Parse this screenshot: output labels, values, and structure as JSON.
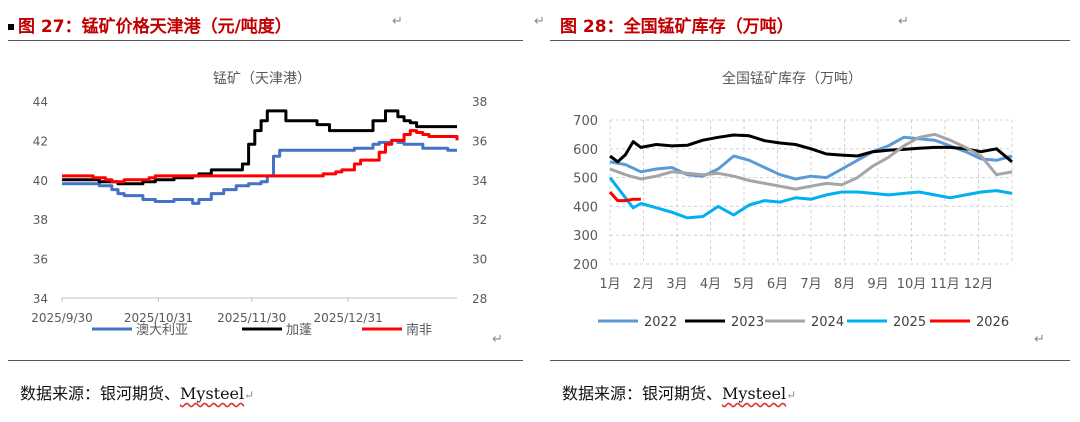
{
  "left": {
    "figure_title": "图 27：锰矿价格天津港（元/吨度）",
    "return_mark": "↵",
    "source": {
      "prefix": "数据来源：银河期货、",
      "brand": "Mysteel",
      "mark": "↵"
    },
    "chart_data": {
      "type": "line",
      "title": "锰矿（天津港）",
      "xlabel": "",
      "ylabel": "",
      "y_left": {
        "min": 34,
        "max": 44,
        "ticks": [
          "44",
          "42",
          "40",
          "38",
          "36",
          "34"
        ]
      },
      "y_right": {
        "min": 28,
        "max": 38,
        "ticks": [
          "38",
          "36",
          "34",
          "32",
          "30",
          "28"
        ]
      },
      "x_ticks": [
        {
          "label": "2025/9/30",
          "day": 0
        },
        {
          "label": "2025/10/31",
          "day": 31
        },
        {
          "label": "2025/11/30",
          "day": 61
        },
        {
          "label": "2025/12/31",
          "day": 92
        }
      ],
      "x_max_day": 127,
      "legend": [
        "澳大利亚",
        "加蓬",
        "南非"
      ],
      "series": [
        {
          "name": "澳大利亚",
          "axis": "left",
          "color": "#4472c4",
          "x": [
            0,
            10,
            12,
            16,
            18,
            20,
            24,
            26,
            28,
            30,
            32,
            36,
            38,
            42,
            44,
            48,
            52,
            56,
            60,
            62,
            64,
            66,
            68,
            70,
            74,
            78,
            82,
            86,
            90,
            94,
            96,
            100,
            102,
            104,
            106,
            108,
            110,
            114,
            116,
            118,
            124,
            127
          ],
          "y": [
            39.8,
            39.8,
            39.7,
            39.5,
            39.3,
            39.2,
            39.2,
            39.0,
            39.0,
            38.9,
            38.9,
            39.0,
            39.0,
            38.8,
            39.0,
            39.3,
            39.5,
            39.7,
            39.8,
            39.8,
            39.9,
            40.2,
            41.2,
            41.5,
            41.5,
            41.5,
            41.5,
            41.5,
            41.5,
            41.6,
            41.6,
            41.8,
            41.9,
            41.9,
            42.0,
            41.9,
            41.8,
            41.8,
            41.6,
            41.6,
            41.5,
            41.5
          ]
        },
        {
          "name": "加蓬",
          "axis": "left",
          "color": "#000000",
          "x": [
            0,
            10,
            12,
            16,
            18,
            20,
            24,
            26,
            28,
            30,
            32,
            36,
            38,
            42,
            44,
            48,
            52,
            56,
            58,
            60,
            62,
            64,
            66,
            68,
            70,
            72,
            74,
            76,
            78,
            82,
            86,
            90,
            94,
            96,
            100,
            102,
            104,
            106,
            108,
            110,
            112,
            114,
            116,
            118,
            124,
            127
          ],
          "y": [
            40.0,
            40.0,
            39.9,
            39.9,
            39.8,
            39.8,
            39.8,
            39.9,
            39.9,
            40.0,
            40.0,
            40.1,
            40.1,
            40.2,
            40.3,
            40.5,
            40.5,
            40.5,
            40.8,
            41.8,
            42.5,
            43.0,
            43.5,
            43.5,
            43.5,
            43.0,
            43.0,
            43.0,
            43.0,
            42.8,
            42.5,
            42.5,
            42.5,
            42.5,
            43.0,
            43.0,
            43.5,
            43.5,
            43.2,
            43.0,
            42.9,
            42.7,
            42.7,
            42.7,
            42.7,
            42.7
          ]
        },
        {
          "name": "南非",
          "axis": "right",
          "color": "#ff0000",
          "x": [
            0,
            8,
            10,
            14,
            16,
            20,
            24,
            28,
            30,
            34,
            40,
            44,
            48,
            52,
            56,
            60,
            64,
            68,
            72,
            76,
            80,
            84,
            88,
            90,
            94,
            96,
            100,
            102,
            104,
            106,
            108,
            110,
            112,
            114,
            116,
            118,
            122,
            124,
            127
          ],
          "y": [
            34.2,
            34.2,
            34.1,
            34.0,
            33.9,
            34.0,
            34.0,
            34.1,
            34.2,
            34.2,
            34.2,
            34.2,
            34.2,
            34.2,
            34.2,
            34.2,
            34.2,
            34.2,
            34.2,
            34.2,
            34.2,
            34.3,
            34.4,
            34.5,
            34.8,
            35.0,
            35.0,
            35.4,
            35.8,
            36.0,
            36.0,
            36.3,
            36.5,
            36.4,
            36.3,
            36.2,
            36.2,
            36.2,
            36.0
          ]
        }
      ]
    }
  },
  "right": {
    "figure_title": "图 28：全国锰矿库存（万吨）",
    "return_mark": "↵",
    "source": {
      "prefix": "数据来源：银河期货、",
      "brand": "Mysteel",
      "mark": "↵"
    },
    "chart_data": {
      "type": "line",
      "title": "全国锰矿库存（万吨）",
      "xlabel": "",
      "ylabel": "",
      "ylim": [
        200,
        700
      ],
      "y_ticks": [
        "700",
        "600",
        "500",
        "400",
        "300",
        "200"
      ],
      "x_ticks": [
        "1月",
        "2月",
        "3月",
        "4月",
        "5月",
        "6月",
        "7月",
        "8月",
        "9月",
        "10月",
        "11月",
        "12月"
      ],
      "x_max_week": 52,
      "legend": [
        "2022",
        "2023",
        "2024",
        "2025",
        "2026"
      ],
      "series": [
        {
          "name": "2022",
          "color": "#5b9bd5",
          "x": [
            0,
            2,
            4,
            6,
            8,
            10,
            12,
            14,
            16,
            18,
            20,
            22,
            24,
            26,
            28,
            30,
            32,
            34,
            36,
            38,
            40,
            42,
            44,
            46,
            48,
            50,
            52
          ],
          "y": [
            555,
            545,
            520,
            530,
            535,
            510,
            505,
            530,
            575,
            560,
            535,
            510,
            495,
            505,
            500,
            530,
            560,
            590,
            610,
            640,
            635,
            630,
            610,
            590,
            565,
            560,
            575
          ]
        },
        {
          "name": "2023",
          "color": "#000000",
          "x": [
            0,
            1,
            2,
            3,
            4,
            6,
            8,
            10,
            12,
            14,
            16,
            18,
            20,
            22,
            24,
            26,
            28,
            30,
            32,
            34,
            36,
            38,
            40,
            42,
            44,
            46,
            48,
            50,
            52
          ],
          "y": [
            575,
            555,
            580,
            625,
            605,
            615,
            610,
            612,
            630,
            640,
            648,
            645,
            628,
            620,
            615,
            600,
            582,
            578,
            575,
            590,
            595,
            598,
            602,
            605,
            605,
            600,
            590,
            600,
            555
          ]
        },
        {
          "name": "2024",
          "color": "#a5a5a5",
          "x": [
            0,
            2,
            4,
            6,
            8,
            10,
            12,
            14,
            16,
            18,
            20,
            22,
            24,
            26,
            28,
            30,
            32,
            34,
            36,
            38,
            40,
            42,
            44,
            46,
            48,
            50,
            52
          ],
          "y": [
            530,
            510,
            495,
            505,
            520,
            515,
            510,
            515,
            505,
            490,
            480,
            470,
            460,
            470,
            480,
            475,
            500,
            540,
            570,
            610,
            640,
            650,
            630,
            605,
            575,
            510,
            520
          ]
        },
        {
          "name": "2025",
          "color": "#00b0f0",
          "x": [
            0,
            1,
            2,
            3,
            4,
            6,
            8,
            10,
            12,
            14,
            16,
            18,
            20,
            22,
            24,
            26,
            28,
            30,
            32,
            34,
            36,
            38,
            40,
            42,
            44,
            46,
            48,
            50,
            52
          ],
          "y": [
            500,
            465,
            430,
            395,
            410,
            395,
            380,
            360,
            365,
            400,
            370,
            405,
            420,
            415,
            430,
            425,
            440,
            450,
            450,
            445,
            440,
            445,
            450,
            440,
            430,
            440,
            450,
            455,
            445
          ]
        },
        {
          "name": "2026",
          "color": "#ff0000",
          "x": [
            0,
            1,
            2,
            3,
            4
          ],
          "y": [
            450,
            420,
            420,
            425,
            425
          ]
        }
      ]
    }
  }
}
